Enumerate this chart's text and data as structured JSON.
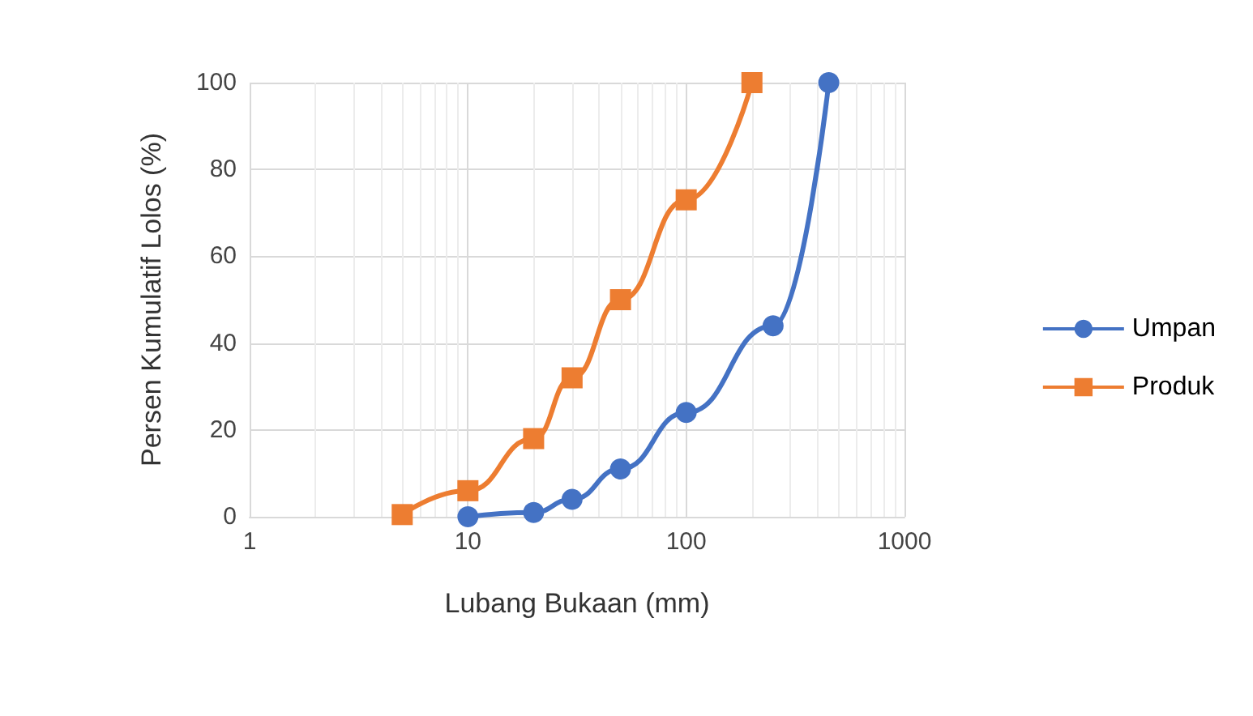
{
  "chart_data": {
    "type": "line",
    "xlabel": "Lubang Bukaan (mm)",
    "ylabel": "Persen Kumulatif Lolos (%)",
    "log": "x",
    "xlim": [
      1,
      1000
    ],
    "xticks": [
      1,
      10,
      100,
      1000
    ],
    "ylim": [
      0,
      100
    ],
    "yticks": [
      0,
      20,
      40,
      60,
      80,
      100
    ],
    "grid": true,
    "legend": "right",
    "series": [
      {
        "name": "Umpan",
        "color": "#4472c4",
        "marker": "circle",
        "x": [
          10,
          20,
          30,
          50,
          100,
          250,
          450
        ],
        "values": [
          0,
          1,
          4,
          11,
          24,
          44,
          100
        ]
      },
      {
        "name": "Produk",
        "color": "#ed7d31",
        "marker": "square",
        "x": [
          5,
          10,
          20,
          30,
          50,
          100,
          200
        ],
        "values": [
          0.5,
          6,
          18,
          32,
          50,
          73,
          100
        ]
      }
    ]
  }
}
